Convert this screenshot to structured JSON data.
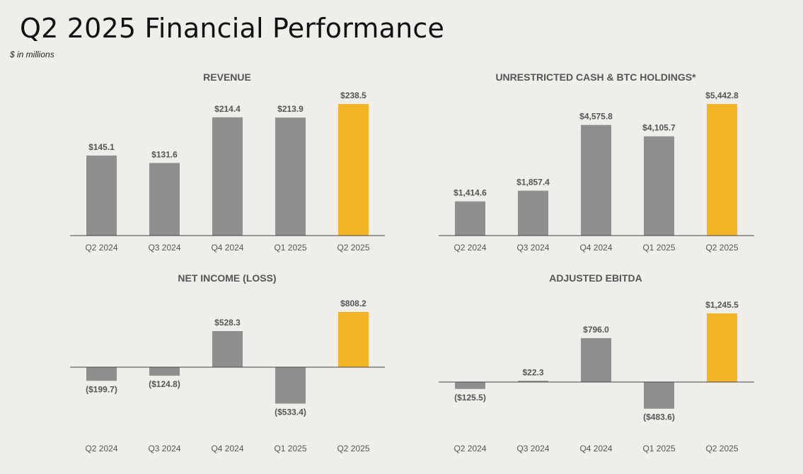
{
  "page": {
    "title": "Q2 2025 Financial Performance",
    "subtitle": "$ in millions"
  },
  "colors": {
    "bar_default": "#8f8f8f",
    "bar_highlight": "#f3b526",
    "axis": "#444444",
    "text": "#555555"
  },
  "chart_data": [
    {
      "type": "bar",
      "title": "REVENUE",
      "categories": [
        "Q2 2024",
        "Q3 2024",
        "Q4 2024",
        "Q1 2025",
        "Q2 2025"
      ],
      "values": [
        145.1,
        131.6,
        214.4,
        213.9,
        238.5
      ],
      "labels": [
        "$145.1",
        "$131.6",
        "$214.4",
        "$213.9",
        "$238.5"
      ],
      "highlight_index": 4,
      "ylim": [
        0,
        238.5
      ]
    },
    {
      "type": "bar",
      "title": "UNRESTRICTED CASH & BTC HOLDINGS*",
      "categories": [
        "Q2 2024",
        "Q3 2024",
        "Q4 2024",
        "Q1 2025",
        "Q2 2025"
      ],
      "values": [
        1414.6,
        1857.4,
        4575.8,
        4105.7,
        5442.8
      ],
      "labels": [
        "$1,414.6",
        "$1,857.4",
        "$4,575.8",
        "$4,105.7",
        "$5,442.8"
      ],
      "highlight_index": 4,
      "ylim": [
        0,
        5442.8
      ]
    },
    {
      "type": "bar",
      "title": "NET INCOME (LOSS)",
      "categories": [
        "Q2 2024",
        "Q3 2024",
        "Q4 2024",
        "Q1 2025",
        "Q2 2025"
      ],
      "values": [
        -199.7,
        -124.8,
        528.3,
        -533.4,
        808.2
      ],
      "labels": [
        "($199.7)",
        "($124.8)",
        "$528.3",
        "($533.4)",
        "$808.2"
      ],
      "highlight_index": 4,
      "ylim": [
        -533.4,
        808.2
      ]
    },
    {
      "type": "bar",
      "title": "ADJUSTED EBITDA",
      "categories": [
        "Q2 2024",
        "Q3 2024",
        "Q4 2024",
        "Q1 2025",
        "Q2 2025"
      ],
      "values": [
        -125.5,
        22.3,
        796.0,
        -483.6,
        1245.5
      ],
      "labels": [
        "($125.5)",
        "$22.3",
        "$796.0",
        "($483.6)",
        "$1,245.5"
      ],
      "highlight_index": 4,
      "ylim": [
        -483.6,
        1245.5
      ]
    }
  ]
}
